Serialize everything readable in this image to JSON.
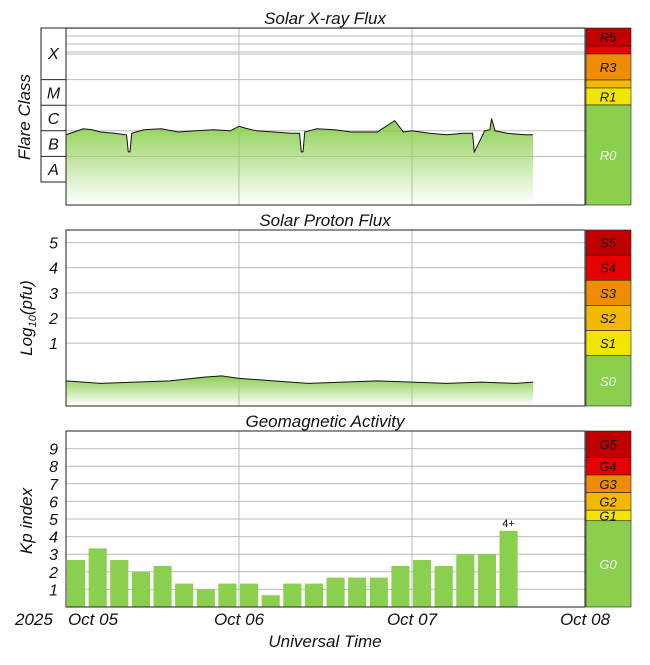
{
  "colors": {
    "green": "#8bcf4f",
    "light_green": "#c6e9a6",
    "yellow": "#f2e600",
    "light_orange": "#f5b800",
    "orange": "#f08c00",
    "red": "#e80000",
    "dark_red": "#c00000",
    "grid": "#bbbbbb",
    "border": "#222222"
  },
  "x_axis": {
    "xlabel": "Universal Time",
    "year": "2025",
    "ticks": [
      "Oct 05",
      "Oct 06",
      "Oct 07",
      "Oct 08"
    ]
  },
  "chart_data": [
    {
      "type": "area",
      "title": "Solar X-ray Flux",
      "ylabel": "Flare Class",
      "y_scale": "log",
      "y_categories": [
        "A",
        "B",
        "C",
        "M",
        "X"
      ],
      "x_range_days": [
        0,
        3
      ],
      "x": [
        0.0,
        0.1,
        0.15,
        0.2,
        0.28,
        0.35,
        0.36,
        0.37,
        0.38,
        0.45,
        0.55,
        0.65,
        0.75,
        0.85,
        0.95,
        1.0,
        1.05,
        1.1,
        1.2,
        1.3,
        1.35,
        1.36,
        1.37,
        1.38,
        1.45,
        1.55,
        1.65,
        1.8,
        1.9,
        1.95,
        2.0,
        2.1,
        2.2,
        2.3,
        2.35,
        2.36,
        2.37,
        2.42,
        2.45,
        2.46,
        2.48,
        2.55,
        2.65,
        2.7
      ],
      "values": [
        "B7",
        "C1.2",
        "C1.1",
        "B9",
        "B8",
        "B7",
        "B1.5",
        "B1.5",
        "B8",
        "C1.1",
        "C1.2",
        "B9",
        "C1",
        "C1.1",
        "C1",
        "C1.5",
        "C1.2",
        "C1",
        "B9",
        "B8",
        "B8",
        "B1.5",
        "B1.5",
        "B9",
        "C1.2",
        "C1.1",
        "B9",
        "B9",
        "C2.5",
        "B9",
        "C1",
        "B8",
        "B7",
        "B8",
        "B8",
        "B1.5",
        "B2",
        "C1",
        "C1.1",
        "C3",
        "C1",
        "B8",
        "B7",
        "B7"
      ],
      "scale_labels": [
        "R5",
        "R3",
        "R1",
        "R0"
      ]
    },
    {
      "type": "area",
      "title": "Solar Proton Flux",
      "ylabel": "Log10(pfu)",
      "ylabel_main": "Log",
      "ylabel_sub": "10",
      "ylabel_rest": "(pfu)",
      "ylim": [
        -1.5,
        5.5
      ],
      "y_ticks": [
        1,
        2,
        3,
        4,
        5
      ],
      "x_range_days": [
        0,
        3
      ],
      "x": [
        0.0,
        0.2,
        0.4,
        0.6,
        0.8,
        0.9,
        1.0,
        1.2,
        1.4,
        1.6,
        1.8,
        2.0,
        2.2,
        2.4,
        2.6,
        2.7
      ],
      "values": [
        -0.5,
        -0.6,
        -0.55,
        -0.5,
        -0.35,
        -0.3,
        -0.4,
        -0.5,
        -0.6,
        -0.55,
        -0.5,
        -0.55,
        -0.6,
        -0.55,
        -0.6,
        -0.55
      ],
      "scale_labels": [
        "S5",
        "S4",
        "S3",
        "S2",
        "S1",
        "S0"
      ]
    },
    {
      "type": "bar",
      "title": "Geomagnetic Activity",
      "ylabel": "Kp index",
      "ylim": [
        0,
        10
      ],
      "y_ticks": [
        1,
        2,
        3,
        4,
        5,
        6,
        7,
        8,
        9
      ],
      "x_range_days": [
        0,
        3
      ],
      "bar_width_days": 0.125,
      "values": [
        2.67,
        3.33,
        2.67,
        2.0,
        2.33,
        1.33,
        1.0,
        1.33,
        1.33,
        0.67,
        1.33,
        1.33,
        1.67,
        1.67,
        1.67,
        2.33,
        2.67,
        2.33,
        3.0,
        3.0,
        4.33
      ],
      "annotations": [
        {
          "index": 20,
          "text": "4+"
        }
      ],
      "scale_labels": [
        "G5",
        "G4",
        "G3",
        "G2",
        "G1",
        "G0"
      ]
    }
  ]
}
